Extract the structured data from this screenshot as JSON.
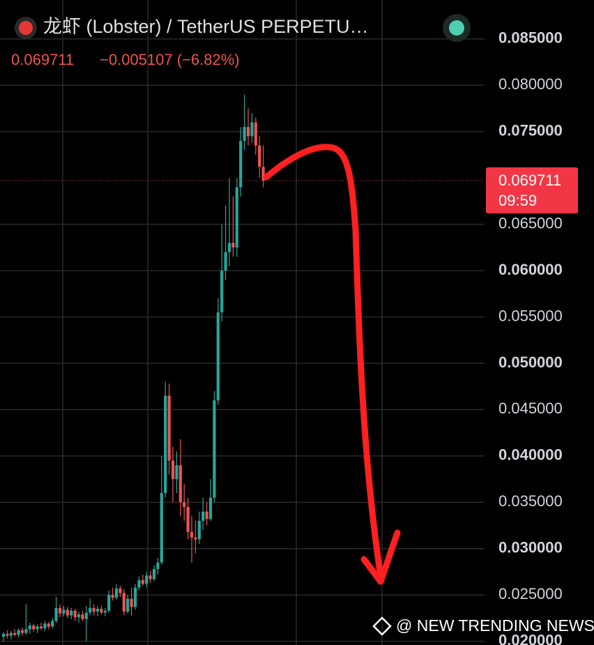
{
  "chart_data": {
    "type": "candlestick",
    "title": "龙虾 (Lobster) / TetherUS PERPETU…",
    "last_price": 0.069711,
    "change_label": "−0.005107 (−6.82%)",
    "countdown": "09:59",
    "watermark": "@ NEW TRENDING NEWS",
    "up_color": "#26a69a",
    "down_color": "#ef5350",
    "ylim": [
      0.0196,
      0.0892
    ],
    "yticks": [
      {
        "value": 0.085,
        "label": "0.085000"
      },
      {
        "value": 0.08,
        "label": "0.080000"
      },
      {
        "value": 0.075,
        "label": "0.075000"
      },
      {
        "value": 0.065,
        "label": "0.065000"
      },
      {
        "value": 0.06,
        "label": "0.060000"
      },
      {
        "value": 0.055,
        "label": "0.055000"
      },
      {
        "value": 0.05,
        "label": "0.050000"
      },
      {
        "value": 0.045,
        "label": "0.045000"
      },
      {
        "value": 0.04,
        "label": "0.040000"
      },
      {
        "value": 0.035,
        "label": "0.035000"
      },
      {
        "value": 0.03,
        "label": "0.030000"
      },
      {
        "value": 0.025,
        "label": "0.025000"
      },
      {
        "value": 0.02,
        "label": "0.020000"
      }
    ],
    "grid": true,
    "series": {
      "open": [
        0.0205,
        0.0208,
        0.0206,
        0.0209,
        0.0207,
        0.0212,
        0.0209,
        0.0213,
        0.0217,
        0.0213,
        0.0216,
        0.0214,
        0.0219,
        0.0216,
        0.0222,
        0.0236,
        0.023,
        0.0234,
        0.0228,
        0.0233,
        0.0226,
        0.0229,
        0.0224,
        0.0231,
        0.0236,
        0.0232,
        0.0235,
        0.0231,
        0.0233,
        0.025,
        0.0247,
        0.0257,
        0.0252,
        0.0232,
        0.0246,
        0.0237,
        0.0258,
        0.0266,
        0.0262,
        0.0271,
        0.0267,
        0.0278,
        0.0285,
        0.036,
        0.0465,
        0.0395,
        0.0375,
        0.039,
        0.035,
        0.0345,
        0.0318,
        0.0312,
        0.031,
        0.033,
        0.034,
        0.0332,
        0.0355,
        0.046,
        0.0555,
        0.06,
        0.062,
        0.063,
        0.0625,
        0.069,
        0.074,
        0.0755,
        0.0745,
        0.076,
        0.0735,
        0.0712
      ],
      "high": [
        0.021,
        0.0212,
        0.0211,
        0.0213,
        0.0214,
        0.0215,
        0.024,
        0.022,
        0.0219,
        0.0218,
        0.022,
        0.0222,
        0.0221,
        0.0225,
        0.0248,
        0.024,
        0.0238,
        0.0237,
        0.0236,
        0.0235,
        0.0232,
        0.0233,
        0.0238,
        0.0246,
        0.024,
        0.0238,
        0.0239,
        0.0236,
        0.0255,
        0.0258,
        0.0262,
        0.026,
        0.0256,
        0.025,
        0.0258,
        0.0262,
        0.027,
        0.0272,
        0.0275,
        0.0276,
        0.0282,
        0.029,
        0.04,
        0.048,
        0.0478,
        0.041,
        0.0405,
        0.0418,
        0.037,
        0.0355,
        0.0335,
        0.033,
        0.034,
        0.0355,
        0.035,
        0.0375,
        0.047,
        0.057,
        0.065,
        0.067,
        0.07,
        0.068,
        0.07,
        0.0755,
        0.079,
        0.0775,
        0.077,
        0.0765,
        0.0745,
        0.0735
      ],
      "low": [
        0.02,
        0.0203,
        0.0202,
        0.0205,
        0.0204,
        0.0206,
        0.0207,
        0.0208,
        0.021,
        0.0209,
        0.0212,
        0.0211,
        0.0213,
        0.0214,
        0.022,
        0.0226,
        0.0227,
        0.0225,
        0.0224,
        0.0222,
        0.022,
        0.0222,
        0.02,
        0.0228,
        0.0228,
        0.0227,
        0.0229,
        0.0227,
        0.0231,
        0.0244,
        0.0245,
        0.0248,
        0.0228,
        0.023,
        0.0228,
        0.0234,
        0.0255,
        0.026,
        0.0258,
        0.0263,
        0.0265,
        0.0272,
        0.0283,
        0.0355,
        0.038,
        0.035,
        0.036,
        0.0335,
        0.033,
        0.031,
        0.0285,
        0.0295,
        0.0305,
        0.032,
        0.0325,
        0.033,
        0.035,
        0.0455,
        0.0545,
        0.059,
        0.0605,
        0.0615,
        0.0615,
        0.068,
        0.073,
        0.0735,
        0.0738,
        0.0725,
        0.07,
        0.069
      ],
      "close": [
        0.0208,
        0.0206,
        0.0209,
        0.0207,
        0.0212,
        0.0209,
        0.0213,
        0.0217,
        0.0213,
        0.0216,
        0.0214,
        0.0219,
        0.0216,
        0.0222,
        0.0236,
        0.023,
        0.0234,
        0.0228,
        0.0233,
        0.0226,
        0.0229,
        0.0224,
        0.0231,
        0.0236,
        0.0232,
        0.0235,
        0.0231,
        0.0233,
        0.025,
        0.0247,
        0.0257,
        0.0252,
        0.0232,
        0.0246,
        0.0237,
        0.0258,
        0.0266,
        0.0262,
        0.0271,
        0.0267,
        0.0278,
        0.0285,
        0.036,
        0.0465,
        0.0395,
        0.0375,
        0.039,
        0.035,
        0.0345,
        0.0318,
        0.0312,
        0.031,
        0.033,
        0.034,
        0.0332,
        0.0355,
        0.046,
        0.0555,
        0.06,
        0.062,
        0.063,
        0.0625,
        0.069,
        0.074,
        0.0755,
        0.0745,
        0.076,
        0.0735,
        0.0712,
        0.069711
      ]
    }
  }
}
